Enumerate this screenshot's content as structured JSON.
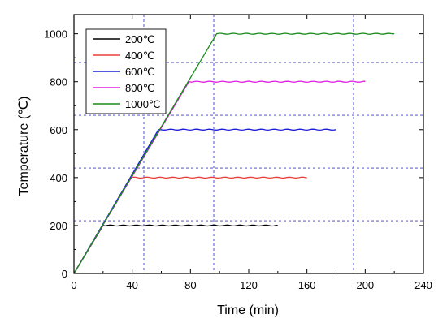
{
  "chart_data": {
    "type": "line",
    "xlabel": "Time (min)",
    "ylabel": "Temperature (℃)",
    "xlim": [
      0,
      240
    ],
    "ylim": [
      0,
      1080
    ],
    "xticks": [
      0,
      40,
      80,
      120,
      160,
      200,
      240
    ],
    "yticks": [
      0,
      200,
      400,
      600,
      800,
      1000
    ],
    "xtick_labels": [
      "0",
      "40",
      "80",
      "120",
      "160",
      "200",
      "240"
    ],
    "ytick_labels": [
      "0",
      "200",
      "400",
      "600",
      "800",
      "1000"
    ],
    "legend_position": "top-left",
    "grid": "dashed blue reference lines",
    "ref_x": [
      48,
      96,
      192
    ],
    "ref_y": [
      220,
      440,
      660,
      880
    ],
    "series": [
      {
        "name": "200℃",
        "color": "#000000",
        "x": [
          0,
          20,
          140
        ],
        "y": [
          0,
          200,
          200
        ]
      },
      {
        "name": "400℃",
        "color": "#e8413a",
        "x": [
          0,
          39,
          160
        ],
        "y": [
          0,
          400,
          400
        ]
      },
      {
        "name": "600℃",
        "color": "#1f1fd9",
        "x": [
          0,
          58,
          180
        ],
        "y": [
          0,
          600,
          600
        ]
      },
      {
        "name": "800℃",
        "color": "#e020e0",
        "x": [
          0,
          79,
          200
        ],
        "y": [
          0,
          800,
          800
        ]
      },
      {
        "name": "1000℃",
        "color": "#1a8c1a",
        "x": [
          0,
          98,
          220
        ],
        "y": [
          0,
          1000,
          1000
        ]
      }
    ]
  }
}
